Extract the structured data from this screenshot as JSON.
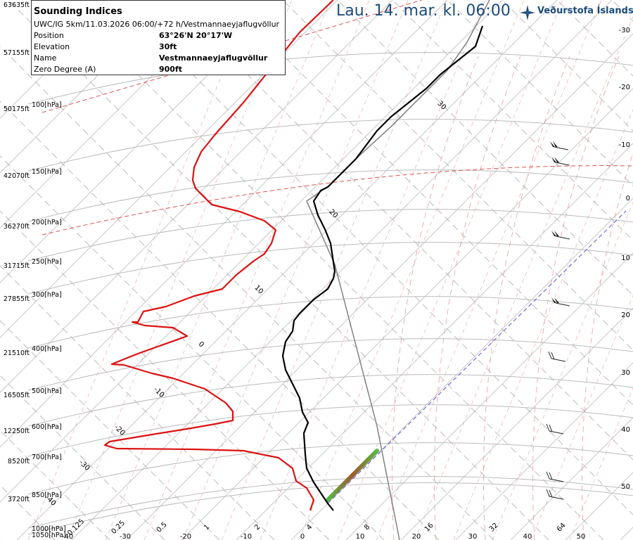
{
  "header": {
    "valid_time": "Lau. 14. mar. kl. 06:00",
    "logo_text": "Veðurstofa Íslands"
  },
  "info": {
    "title": "Sounding Indices",
    "model": "UWC/IG 5km/11.03.2026 06:00/+72 h/Vestmannaeyjaflugvöllur",
    "rows": [
      {
        "label": "Position",
        "value": "63°26'N 20°17'W"
      },
      {
        "label": "Elevation",
        "value": "30ft"
      },
      {
        "label": "Name",
        "value": "Vestmannaeyjaflugvöllur"
      },
      {
        "label": "Zero Degree (A)",
        "value": "900ft"
      }
    ]
  },
  "colors": {
    "temperature": "#000000",
    "dewpoint": "#dd1111",
    "parcel": "#888888",
    "dry_adiabat": "#b4b4b4",
    "moist_adiabat": "#e08080",
    "isotherm": "#c8c8c8",
    "mixing_ratio": "#dd8888",
    "freezing_level": "#5555cc",
    "title": "#1c4c7c"
  },
  "chart_data": {
    "type": "line",
    "title": "",
    "xlabel": "",
    "ylabel": "",
    "pressure_levels": [
      {
        "hpa": "100[hPa]",
        "ft": "50175ft"
      },
      {
        "hpa": "150[hPa]",
        "ft": "42070ft"
      },
      {
        "hpa": "200[hPa]",
        "ft": "36270ft"
      },
      {
        "hpa": "250[hPa]",
        "ft": "31715ft"
      },
      {
        "hpa": "300[hPa]",
        "ft": "27855ft"
      },
      {
        "hpa": "400[hPa]",
        "ft": "21510ft"
      },
      {
        "hpa": "500[hPa]",
        "ft": "16505ft"
      },
      {
        "hpa": "600[hPa]",
        "ft": "12250ft"
      },
      {
        "hpa": "700[hPa]",
        "ft": "8520ft"
      },
      {
        "hpa": "850[hPa]",
        "ft": "3720ft"
      },
      {
        "hpa": "1000[hPa]",
        "ft": ""
      },
      {
        "hpa": "1050[hPa]",
        "ft": ""
      }
    ],
    "top_altitudes": [
      "63635ft",
      "57155ft"
    ],
    "bottom_temperature_ticks": [
      "-40",
      "-30",
      "-20",
      "-10",
      "0",
      "10",
      "20",
      "30",
      "40",
      "50"
    ],
    "mixing_ratio_labels": [
      "0.125",
      "0.25",
      "0.5",
      "1",
      "2",
      "4",
      "8",
      "16",
      "32",
      "64"
    ],
    "right_axis_labels": [
      "-30",
      "-20",
      "-10",
      "0",
      "10",
      "20",
      "30",
      "40",
      "50"
    ],
    "isotherm_labels": [
      "30",
      "20",
      "10",
      "0",
      "-10",
      "-20",
      "-30",
      "-40"
    ],
    "temperature": [
      [
        686,
        37
      ],
      [
        676,
        66
      ],
      [
        626,
        106
      ],
      [
        606,
        126
      ],
      [
        556,
        166
      ],
      [
        536,
        186
      ],
      [
        512,
        218
      ],
      [
        506,
        226
      ],
      [
        486,
        246
      ],
      [
        466,
        266
      ],
      [
        456,
        271
      ],
      [
        446,
        286
      ],
      [
        452,
        306
      ],
      [
        462,
        326
      ],
      [
        470,
        346
      ],
      [
        476,
        386
      ],
      [
        474,
        396
      ],
      [
        466,
        411
      ],
      [
        446,
        426
      ],
      [
        426,
        446
      ],
      [
        418,
        456
      ],
      [
        416,
        471
      ],
      [
        406,
        486
      ],
      [
        402,
        506
      ],
      [
        406,
        526
      ],
      [
        416,
        546
      ],
      [
        426,
        566
      ],
      [
        430,
        586
      ],
      [
        438,
        601
      ],
      [
        432,
        616
      ],
      [
        434,
        646
      ],
      [
        436,
        666
      ],
      [
        446,
        686
      ],
      [
        456,
        701
      ],
      [
        466,
        716
      ],
      [
        474,
        726
      ]
    ],
    "dewpoint": [
      [
        474,
        0
      ],
      [
        426,
        46
      ],
      [
        378,
        106
      ],
      [
        346,
        146
      ],
      [
        306,
        191
      ],
      [
        286,
        216
      ],
      [
        276,
        238
      ],
      [
        274,
        256
      ],
      [
        278,
        268
      ],
      [
        301,
        291
      ],
      [
        341,
        301
      ],
      [
        376,
        314
      ],
      [
        392,
        327
      ],
      [
        386,
        346
      ],
      [
        376,
        361
      ],
      [
        361,
        371
      ],
      [
        336,
        391
      ],
      [
        316,
        411
      ],
      [
        276,
        421
      ],
      [
        236,
        436
      ],
      [
        204,
        443
      ],
      [
        196,
        458
      ],
      [
        188,
        458
      ],
      [
        206,
        463
      ],
      [
        246,
        466
      ],
      [
        266,
        478
      ],
      [
        196,
        503
      ],
      [
        171,
        513
      ],
      [
        159,
        518
      ],
      [
        176,
        519
      ],
      [
        216,
        531
      ],
      [
        246,
        538
      ],
      [
        261,
        543
      ],
      [
        291,
        553
      ],
      [
        321,
        573
      ],
      [
        331,
        585
      ],
      [
        331,
        598
      ],
      [
        306,
        603
      ],
      [
        266,
        610
      ],
      [
        216,
        618
      ],
      [
        156,
        628
      ],
      [
        149,
        633
      ],
      [
        166,
        638
      ],
      [
        276,
        639
      ],
      [
        346,
        641
      ],
      [
        396,
        651
      ],
      [
        416,
        666
      ],
      [
        421,
        684
      ],
      [
        436,
        694
      ],
      [
        446,
        711
      ],
      [
        441,
        726
      ]
    ],
    "parcel": [
      [
        696,
        0
      ],
      [
        664,
        60
      ],
      [
        636,
        100
      ],
      [
        556,
        180
      ],
      [
        508,
        224
      ],
      [
        468,
        264
      ],
      [
        436,
        286
      ],
      [
        476,
        376
      ],
      [
        536,
        606
      ],
      [
        568,
        768
      ]
    ],
    "cape_segment": [
      [
        466,
        711
      ],
      [
        536,
        641
      ]
    ],
    "wind_barbs": [
      [
        788,
        209
      ],
      [
        790,
        231
      ],
      [
        790,
        336
      ],
      [
        790,
        431
      ],
      [
        784,
        510
      ],
      [
        781,
        613
      ],
      [
        781,
        681
      ],
      [
        781,
        706
      ]
    ],
    "grid": "on"
  }
}
